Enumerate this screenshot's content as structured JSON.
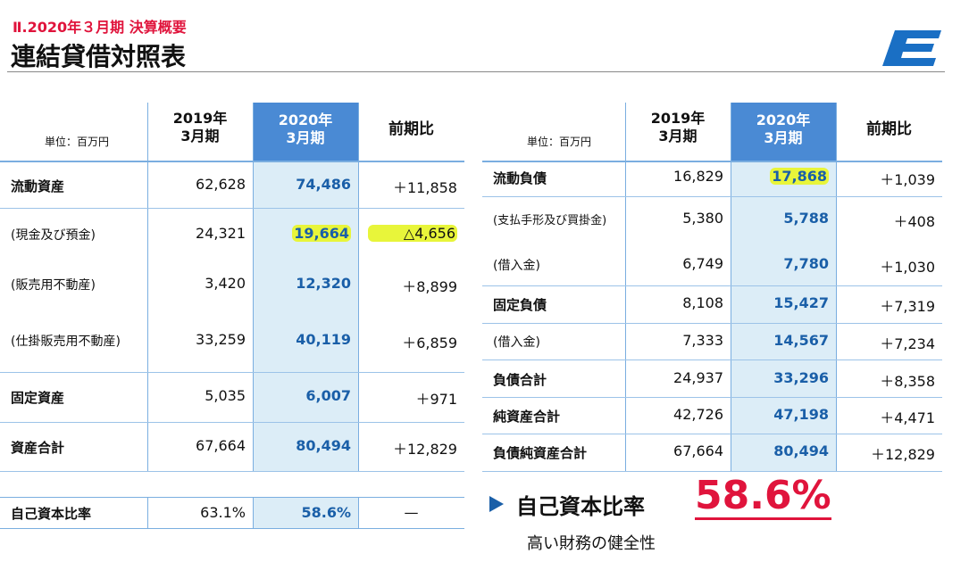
{
  "header": {
    "section": "Ⅱ.2020年３月期  決算概要",
    "title": "連結貸借対照表",
    "logo": "E"
  },
  "unit": "単位：百万円",
  "columns": {
    "y2019": "2019年\n3月期",
    "y2020": "2020年\n3月期",
    "diff": "前期比"
  },
  "assets": [
    {
      "label": "流動資産",
      "v2019": "62,628",
      "v2020": "74,486",
      "diff": "＋11,858",
      "bold": true
    },
    {
      "label": "(現金及び預金)",
      "v2019": "24,321",
      "v2020": "19,664",
      "diff": "△4,656",
      "highlight": true
    },
    {
      "label": "(販売用不動産)",
      "v2019": "3,420",
      "v2020": "12,320",
      "diff": "＋8,899"
    },
    {
      "label": "(仕掛販売用不動産)",
      "v2019": "33,259",
      "v2020": "40,119",
      "diff": "＋6,859"
    },
    {
      "label": "固定資産",
      "v2019": "5,035",
      "v2020": "6,007",
      "diff": "＋971",
      "bold": true
    },
    {
      "label": "資産合計",
      "v2019": "67,664",
      "v2020": "80,494",
      "diff": "＋12,829",
      "bold": true
    }
  ],
  "equity_ratio_row": {
    "label": "自己資本比率",
    "v2019": "63.1%",
    "v2020": "58.6%",
    "diff": "—"
  },
  "liabilities": [
    {
      "label": "流動負債",
      "v2019": "16,829",
      "v2020": "17,868",
      "diff": "＋1,039",
      "bold": true,
      "highlight": true
    },
    {
      "label": "(支払手形及び買掛金)",
      "v2019": "5,380",
      "v2020": "5,788",
      "diff": "＋408",
      "small": true
    },
    {
      "label": "(借入金)",
      "v2019": "6,749",
      "v2020": "7,780",
      "diff": "＋1,030"
    },
    {
      "label": "固定負債",
      "v2019": "8,108",
      "v2020": "15,427",
      "diff": "＋7,319",
      "bold": true
    },
    {
      "label": "(借入金)",
      "v2019": "7,333",
      "v2020": "14,567",
      "diff": "＋7,234"
    },
    {
      "label": "負債合計",
      "v2019": "24,937",
      "v2020": "33,296",
      "diff": "＋8,358",
      "bold": true
    },
    {
      "label": "純資産合計",
      "v2019": "42,726",
      "v2020": "47,198",
      "diff": "＋4,471",
      "bold": true
    },
    {
      "label": "負債純資産合計",
      "v2019": "67,664",
      "v2020": "80,494",
      "diff": "＋12,829",
      "bold": true
    }
  ],
  "summary": {
    "label": "自己資本比率",
    "value": "58.6%",
    "note": "高い財務の健全性"
  },
  "colors": {
    "accent": "#e0143c",
    "header_blue": "#4a8ad4",
    "col_bg": "#dcedf7",
    "value_blue": "#1a5fa8",
    "highlight": "#e8f53a"
  }
}
